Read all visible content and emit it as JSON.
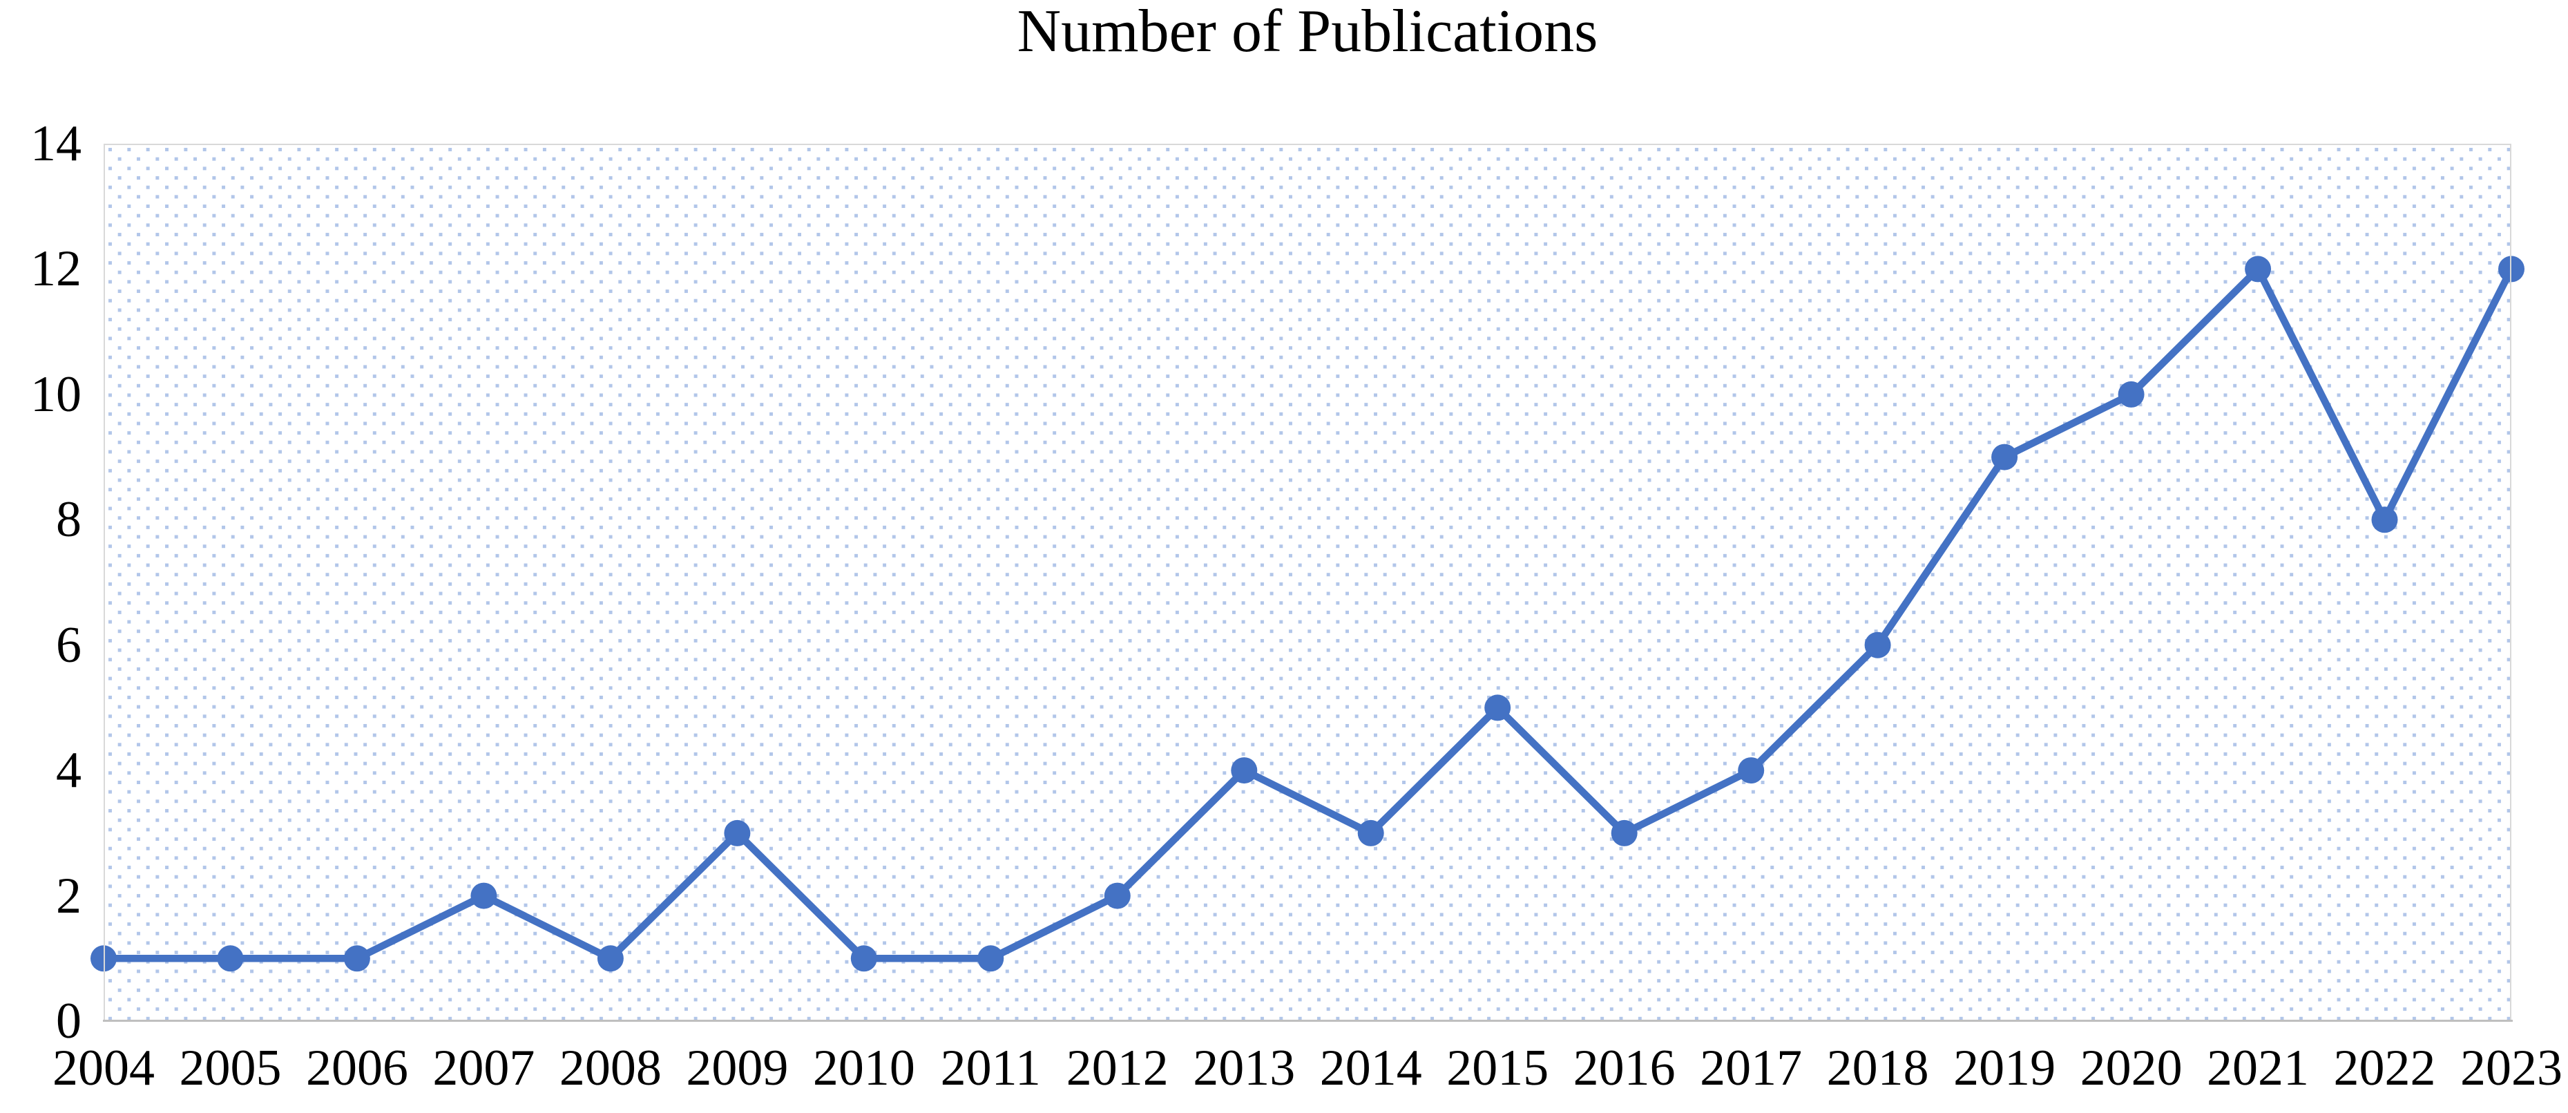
{
  "chart_data": {
    "type": "line",
    "title": "Number of Publications",
    "x": [
      "2004",
      "2005",
      "2006",
      "2007",
      "2008",
      "2009",
      "2010",
      "2011",
      "2012",
      "2013",
      "2014",
      "2015",
      "2016",
      "2017",
      "2018",
      "2019",
      "2020",
      "2021",
      "2022",
      "2023"
    ],
    "series": [
      {
        "name": "Number of Publications",
        "values": [
          1,
          1,
          1,
          2,
          1,
          3,
          1,
          1,
          2,
          4,
          3,
          5,
          3,
          4,
          6,
          9,
          10,
          12,
          8,
          12
        ]
      }
    ],
    "xlabel": "",
    "ylabel": "",
    "ylim": [
      0,
      14
    ],
    "yticks": [
      0,
      2,
      4,
      6,
      8,
      10,
      12,
      14
    ],
    "grid": false,
    "legend": "none",
    "marker": "circle",
    "plot_background": "dotted-checkerboard-pattern",
    "colors": {
      "line": "#4472C4",
      "marker": "#4472C4",
      "pattern_dot": "#B2C6E9",
      "plot_border": "#D9D9D9",
      "axis_line": "#BFBFBF",
      "text": "#000000",
      "background": "#FFFFFF"
    }
  }
}
